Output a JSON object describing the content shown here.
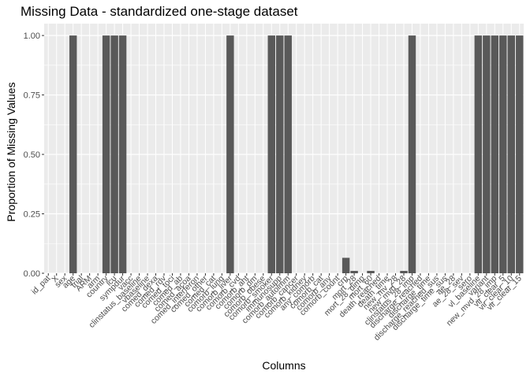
{
  "chart_data": {
    "type": "bar",
    "title": "Missing Data - standardized one-stage dataset",
    "xlabel": "Columns",
    "ylabel": "Proportion of Missing Values",
    "ylim": [
      0,
      1.05
    ],
    "yticks": [
      0.0,
      0.25,
      0.5,
      0.75,
      1.0
    ],
    "ytick_labels": [
      "0.00",
      "0.25",
      "0.50",
      "0.75",
      "1.00"
    ],
    "grid": true,
    "legend": "none",
    "colors": {
      "panel": "#ebebeb",
      "grid": "#ffffff",
      "bar": "#595959",
      "tick": "#333333"
    },
    "categories": [
      "id_pat",
      "X",
      "sex",
      "age",
      "trial",
      "ARM",
      "arm",
      "country",
      "icu",
      "sympdur",
      "vacc",
      "clinstatus_baseline",
      "vbaseline",
      "comed_dexa",
      "comed_rdv",
      "comed_toci",
      "comed_ab",
      "comed_acoa",
      "comed_interferon",
      "comed_other",
      "comed_cat",
      "comorb_lung",
      "comorb_liver",
      "comorb_cvd",
      "comorb_aht",
      "comorb_dm",
      "comorb_obese",
      "comorb_smoker",
      "immunosupp",
      "comorb_autoimm",
      "comorb_cancer",
      "comorb_kidney",
      "any_comorb",
      "comorb_cat",
      "comorb_any",
      "comorb_count",
      "crp",
      "mort_28",
      "mort_28_dimp",
      "mort_60",
      "death_reached",
      "death_time",
      "new_mv_28",
      "new_mvd_28",
      "clinstatus_28_imp",
      "discharge_reached",
      "discharge_time",
      "discharge_reached_sus",
      "discharge_time_sus",
      "ae_28",
      "ae_28_sev",
      "sero",
      "vl_baseline",
      "variant",
      "new_mvd_28_imp",
      "vir_clear_5",
      "vir_clear_10",
      "vir_clear_15"
    ],
    "x_tick_labels": [
      "id_pat",
      "X",
      "sex",
      "age",
      "trial",
      "ARM",
      "arm",
      "country",
      "icu",
      "sympdur",
      "vacc",
      "clinstatus_baseline",
      "vbaseline",
      "comed_dexa",
      "comed_rdv",
      "comed_toci",
      "comed_ab",
      "comed_acoa",
      "comed_interferon",
      "comed_other",
      "comed_cat",
      "comorb_lung",
      "comorb_liver",
      "comorb_cvd",
      "comorb_aht",
      "comorb_dm",
      "comorb_obese",
      "comorb_smoker",
      "immunosupp",
      "comorb_autoimm",
      "comorb_cancer",
      "comorb_kidney",
      "any_comorb",
      "comorb_cat",
      "comorb_any",
      "comorb_count",
      "crp",
      "mort_28",
      "mort_28_dimp",
      "mort_60",
      "death_reached",
      "death_time",
      "new_mv_28",
      "new_mvd_28",
      "clinstatus_28_imp",
      "discharge_reached",
      "discharge_time",
      "discharge_reached_sus",
      "discharge_time_sus",
      "ae_28",
      "ae_28_sev",
      "sero",
      "vl_baseline",
      "variant",
      "new_mvd_28_imp",
      "vir_clear_5",
      "vir_clear_10",
      "vir_clear_15"
    ],
    "values": [
      0,
      0,
      0,
      1,
      0,
      0,
      0,
      1,
      1,
      1,
      0,
      0,
      0,
      0,
      0,
      0,
      0,
      0,
      0,
      0,
      0,
      0,
      1,
      0,
      0,
      0,
      0,
      1,
      1,
      1,
      0,
      0,
      0,
      0,
      0,
      0,
      0.065,
      0.01,
      0,
      0.01,
      0,
      0,
      0,
      0.01,
      1,
      0,
      0,
      0,
      0,
      0,
      0,
      0,
      1,
      1,
      1,
      1,
      1,
      1
    ]
  }
}
